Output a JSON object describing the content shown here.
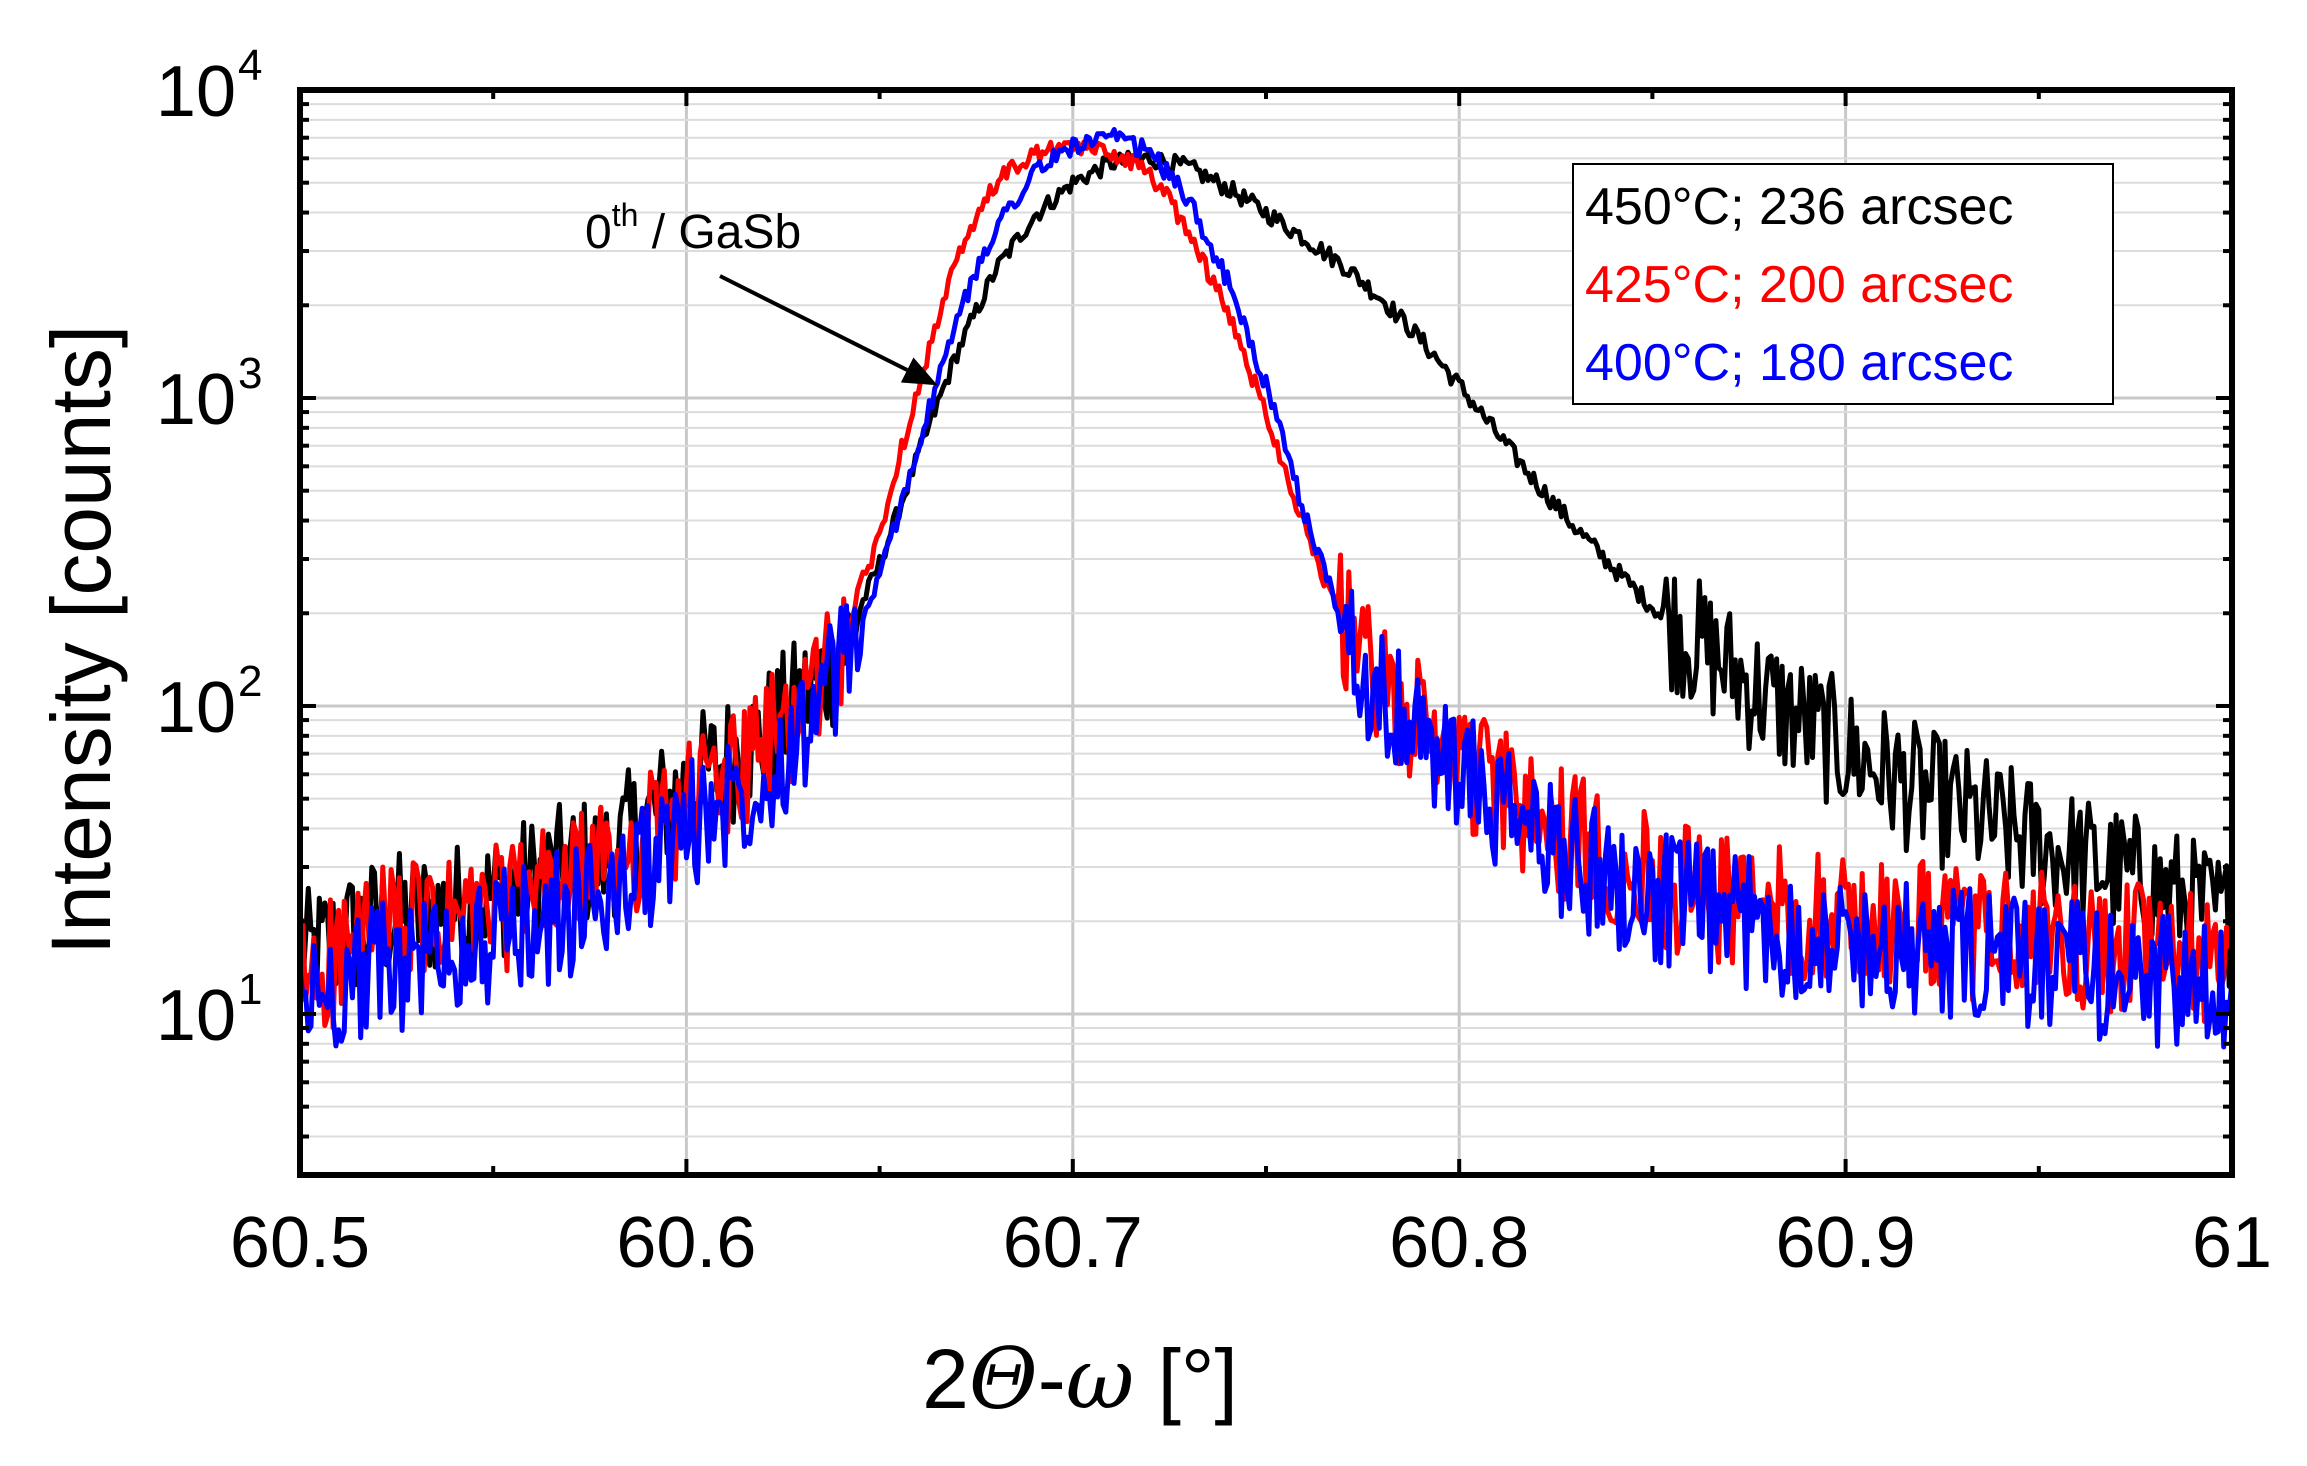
{
  "chart_data": {
    "type": "line",
    "xlabel_parts": {
      "prefix": "2",
      "theta": "Θ",
      "dash": "-",
      "omega": "ω",
      "unit": " [°]"
    },
    "ylabel": "Intensity [counts]",
    "xlim": [
      60.5,
      61.0
    ],
    "ylim": [
      3,
      10000
    ],
    "yscale": "log",
    "grid": true,
    "legend_position": "top-right",
    "xticks": [
      "60.5",
      "60.6",
      "60.7",
      "60.8",
      "60.9",
      "61"
    ],
    "xtick_values": [
      60.5,
      60.6,
      60.7,
      60.8,
      60.9,
      61.0
    ],
    "yticks": [
      {
        "base": "10",
        "exp": "1",
        "value": 10
      },
      {
        "base": "10",
        "exp": "2",
        "value": 100
      },
      {
        "base": "10",
        "exp": "3",
        "value": 1000
      },
      {
        "base": "10",
        "exp": "4",
        "value": 10000
      }
    ],
    "annotation": {
      "text_base": "0",
      "text_sup": "th",
      "text_rest": " / GaSb",
      "arrow_to": [
        60.665,
        1100
      ]
    },
    "series": [
      {
        "name": "450°C; 236 arcsec",
        "color": "#000000",
        "x": [
          60.5,
          60.52,
          60.54,
          60.56,
          60.58,
          60.6,
          60.62,
          60.63,
          60.64,
          60.65,
          60.66,
          60.67,
          60.68,
          60.69,
          60.7,
          60.71,
          60.72,
          60.73,
          60.74,
          60.75,
          60.76,
          60.77,
          60.78,
          60.79,
          60.8,
          60.81,
          60.82,
          60.83,
          60.84,
          60.85,
          60.86,
          60.88,
          60.9,
          60.92,
          60.94,
          60.96,
          60.98,
          61.0
        ],
        "y": [
          15,
          20,
          22,
          27,
          33,
          55,
          80,
          105,
          150,
          290,
          650,
          1400,
          2600,
          3900,
          5000,
          5800,
          6000,
          5600,
          4800,
          4000,
          3300,
          2700,
          2100,
          1550,
          1100,
          760,
          530,
          380,
          280,
          210,
          165,
          105,
          72,
          52,
          40,
          32,
          26,
          20
        ]
      },
      {
        "name": "425°C; 200 arcsec",
        "color": "#ff0000",
        "x": [
          60.5,
          60.52,
          60.54,
          60.56,
          60.58,
          60.6,
          60.62,
          60.63,
          60.64,
          60.65,
          60.66,
          60.67,
          60.68,
          60.69,
          60.7,
          60.71,
          60.72,
          60.73,
          60.74,
          60.75,
          60.76,
          60.77,
          60.78,
          60.79,
          60.8,
          60.81,
          60.82,
          60.83,
          60.84,
          60.85,
          60.86,
          60.88,
          60.9,
          60.92,
          60.94,
          60.96,
          60.98,
          61.0
        ],
        "y": [
          13,
          18,
          20,
          24,
          30,
          48,
          72,
          100,
          160,
          360,
          1100,
          2800,
          5000,
          6200,
          6500,
          6300,
          5400,
          3500,
          1900,
          900,
          380,
          180,
          110,
          85,
          68,
          52,
          42,
          36,
          32,
          28,
          25,
          22,
          20,
          19,
          18,
          17,
          16,
          14
        ]
      },
      {
        "name": "400°C; 180 arcsec",
        "color": "#0000ff",
        "x": [
          60.5,
          60.52,
          60.54,
          60.56,
          60.58,
          60.6,
          60.62,
          60.63,
          60.64,
          60.65,
          60.66,
          60.67,
          60.68,
          60.69,
          60.7,
          60.71,
          60.72,
          60.73,
          60.74,
          60.75,
          60.76,
          60.77,
          60.78,
          60.79,
          60.8,
          60.81,
          60.82,
          60.83,
          60.84,
          60.85,
          60.86,
          60.88,
          60.9,
          60.92,
          60.94,
          60.96,
          60.98,
          61.0
        ],
        "y": [
          11,
          14,
          16,
          19,
          24,
          40,
          60,
          85,
          130,
          260,
          700,
          1800,
          3600,
          5400,
          6600,
          7000,
          6300,
          4400,
          2400,
          1100,
          420,
          185,
          105,
          78,
          60,
          46,
          38,
          32,
          27,
          24,
          22,
          19,
          17,
          16,
          15,
          14,
          13,
          11
        ]
      }
    ]
  }
}
